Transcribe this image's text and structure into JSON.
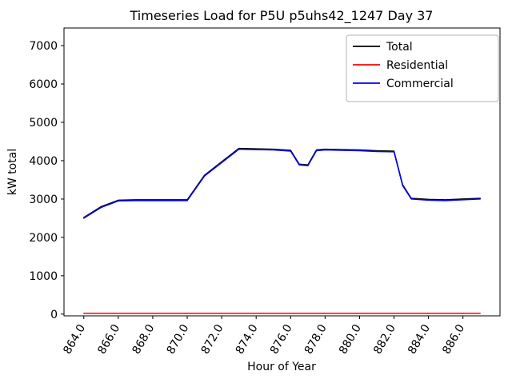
{
  "figure": {
    "title": "Timeseries Load for P5U p5uhs42_1247  Day 37",
    "xlabel": "Hour of Year",
    "ylabel": "kW total"
  },
  "chart_data": {
    "type": "line",
    "title": "Timeseries Load for P5U p5uhs42_1247  Day 37",
    "xlabel": "Hour of Year",
    "ylabel": "kW total",
    "legend_position": "upper right",
    "grid": false,
    "xlim": [
      862.85,
      888.15
    ],
    "ylim": [
      -45,
      7460
    ],
    "xticks": [
      864,
      866,
      868,
      870,
      872,
      874,
      876,
      878,
      880,
      882,
      884,
      886
    ],
    "xtick_labels": [
      "864.0",
      "866.0",
      "868.0",
      "870.0",
      "872.0",
      "874.0",
      "876.0",
      "878.0",
      "880.0",
      "882.0",
      "884.0",
      "886.0"
    ],
    "yticks": [
      0,
      1000,
      2000,
      3000,
      4000,
      5000,
      6000,
      7000
    ],
    "ytick_labels": [
      "0",
      "1000",
      "2000",
      "3000",
      "4000",
      "5000",
      "6000",
      "7000"
    ],
    "x": [
      864,
      865,
      866,
      867,
      868,
      869,
      870,
      871,
      872,
      873,
      874,
      875,
      876,
      876.5,
      877,
      877.5,
      878,
      879,
      880,
      881,
      882,
      882.5,
      883,
      884,
      885,
      886,
      887
    ],
    "series": [
      {
        "name": "Total",
        "color": "#000000",
        "values": [
          2520,
          2800,
          2970,
          2980,
          2980,
          2980,
          2980,
          3620,
          3970,
          4320,
          4310,
          4300,
          4270,
          3910,
          3890,
          4280,
          4300,
          4290,
          4280,
          4260,
          4250,
          3370,
          3020,
          2990,
          2980,
          3000,
          3020
        ]
      },
      {
        "name": "Residential",
        "color": "#ff0000",
        "values": [
          20,
          20,
          20,
          20,
          20,
          20,
          20,
          20,
          20,
          20,
          20,
          20,
          20,
          20,
          20,
          20,
          20,
          20,
          20,
          20,
          20,
          20,
          20,
          20,
          20,
          20,
          20
        ]
      },
      {
        "name": "Commercial",
        "color": "#0000ff",
        "values": [
          2500,
          2780,
          2950,
          2960,
          2960,
          2960,
          2960,
          3600,
          3950,
          4300,
          4290,
          4280,
          4250,
          3890,
          3870,
          4260,
          4280,
          4270,
          4260,
          4240,
          4230,
          3350,
          3000,
          2970,
          2960,
          2980,
          3000
        ]
      }
    ]
  }
}
